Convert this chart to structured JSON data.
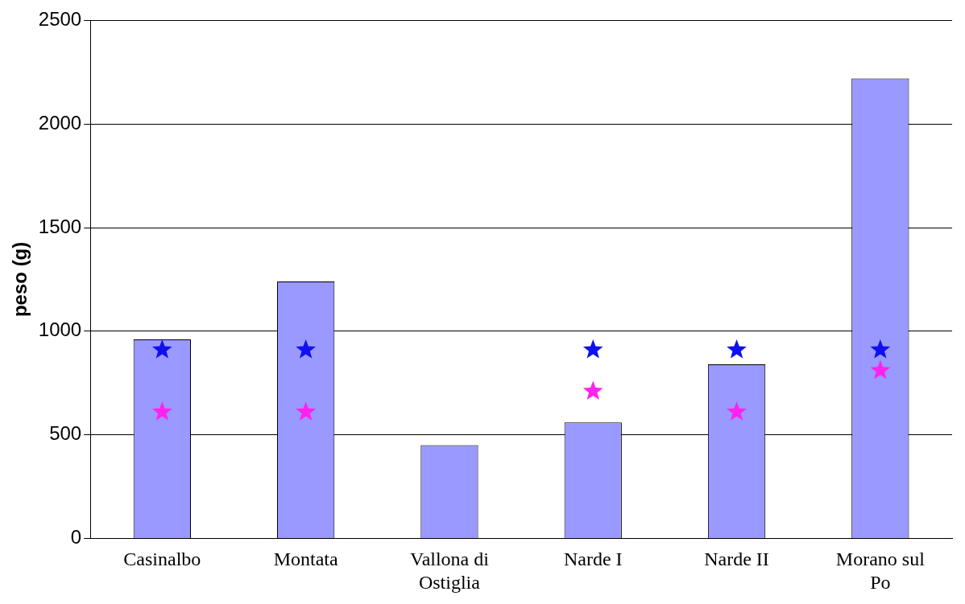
{
  "chart_data": {
    "type": "bar",
    "ylabel": "peso (g)",
    "categories": [
      "Casinalbo",
      "Montata",
      "Vallona di Ostiglia",
      "Narde I",
      "Narde II",
      "Morano sul Po"
    ],
    "series": [
      {
        "color": "#9999ff",
        "values": [
          960,
          1240,
          450,
          560,
          840,
          2220
        ]
      },
      {
        "type": "scatter",
        "color": "#1010ee",
        "marker": "star",
        "values": [
          910,
          910,
          null,
          910,
          910,
          910
        ]
      },
      {
        "type": "scatter",
        "color": "#ff22ee",
        "marker": "star",
        "values": [
          610,
          610,
          null,
          710,
          610,
          810
        ]
      }
    ],
    "ylim": [
      0,
      2500
    ],
    "yticks": [
      0,
      500,
      1000,
      1500,
      2000,
      2500
    ],
    "grid": "y",
    "legend": false
  }
}
